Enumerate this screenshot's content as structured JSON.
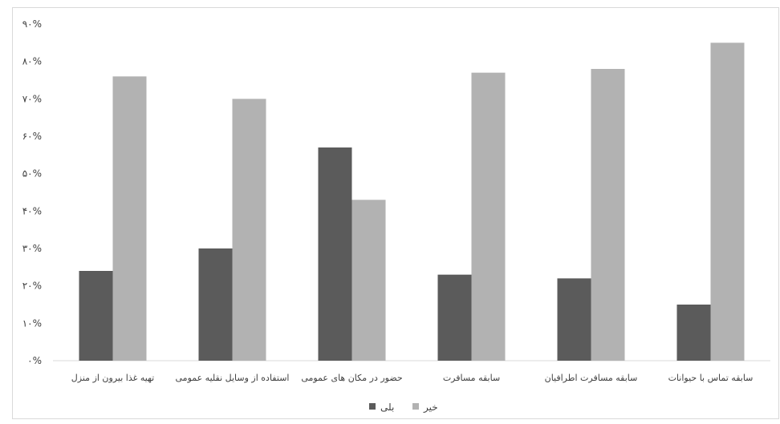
{
  "colors": {
    "yes": "#5b5b5b",
    "no": "#b2b2b2"
  },
  "chart_data": {
    "type": "bar",
    "title": "",
    "xlabel": "",
    "ylabel": "",
    "ylim": [
      0,
      90
    ],
    "y_ticks": [
      0,
      10,
      20,
      30,
      40,
      50,
      60,
      70,
      80,
      90
    ],
    "y_tick_labels": [
      "۰%",
      "۱۰%",
      "۲۰%",
      "۳۰%",
      "۴۰%",
      "۵۰%",
      "۶۰%",
      "۷۰%",
      "۸۰%",
      "۹۰%"
    ],
    "categories": [
      "تهیه غذا بیرون از منزل",
      "استفاده از وسایل نقلیه عمومی",
      "حضور در مکان های عمومی",
      "سابقه مسافرت",
      "سابقه مسافرت اطرافیان",
      "سابقه تماس با حیوانات"
    ],
    "series": [
      {
        "name": "بلی",
        "values": [
          24,
          30,
          57,
          23,
          22,
          15
        ]
      },
      {
        "name": "خیر",
        "values": [
          76,
          70,
          43,
          77,
          78,
          85
        ]
      }
    ],
    "grid": false,
    "legend_position": "bottom"
  }
}
